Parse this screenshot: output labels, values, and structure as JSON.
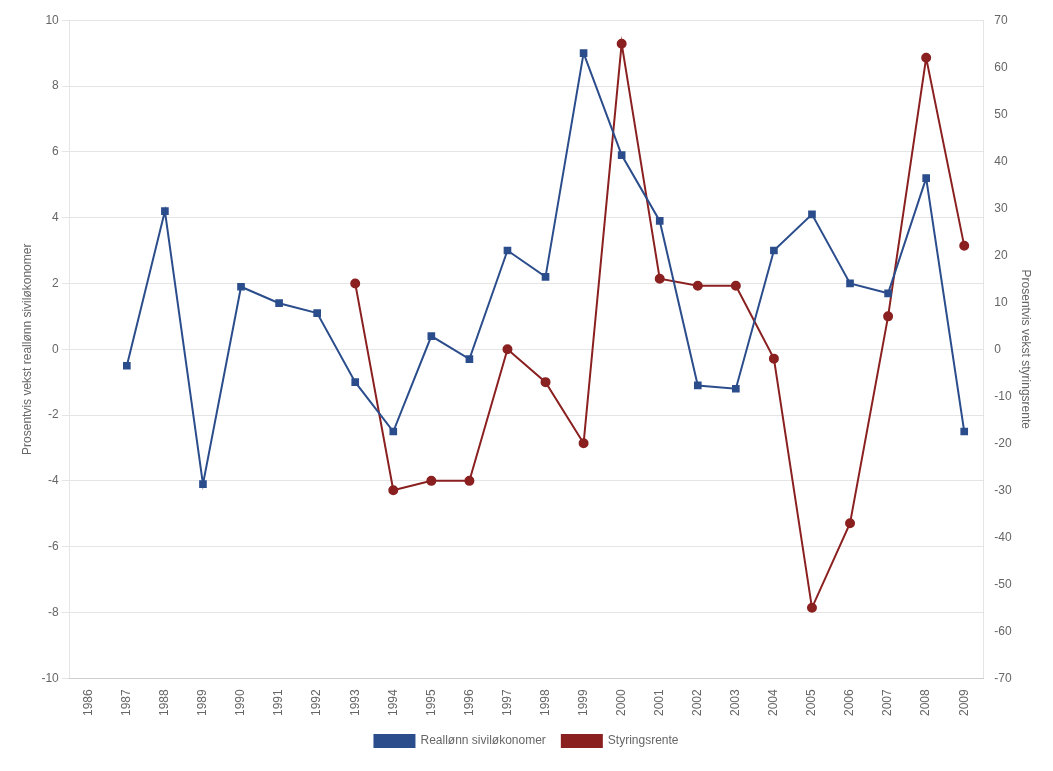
{
  "chart_data": {
    "type": "line",
    "x": [
      1986,
      1987,
      1988,
      1989,
      1990,
      1991,
      1992,
      1993,
      1994,
      1995,
      1996,
      1997,
      1998,
      1999,
      2000,
      2001,
      2002,
      2003,
      2004,
      2005,
      2006,
      2007,
      2008,
      2009
    ],
    "xlim": [
      1985.5,
      2009.5
    ],
    "xticks": [
      1986,
      1987,
      1988,
      1989,
      1990,
      1991,
      1992,
      1993,
      1994,
      1995,
      1996,
      1997,
      1998,
      1999,
      2000,
      2001,
      2002,
      2003,
      2004,
      2005,
      2006,
      2007,
      2008,
      2009
    ],
    "ylabel": "Prosentvis vekst reallønn siviløkonomer",
    "y2label": "Prosentvis vekst styringsrente",
    "ylim": [
      -10,
      10
    ],
    "yticks": [
      -10,
      -8,
      -6,
      -4,
      -2,
      0,
      2,
      4,
      6,
      8,
      10
    ],
    "y2lim": [
      -70,
      70
    ],
    "y2ticks": [
      -70,
      -60,
      -50,
      -40,
      -30,
      -20,
      -10,
      0,
      10,
      20,
      30,
      40,
      50,
      60,
      70
    ],
    "grid": "y",
    "legend": "bottom",
    "series": [
      {
        "name": "Reallønn siviløkonomer",
        "color": "#2B4D8C",
        "marker": "square",
        "line_style": "solid",
        "values": [
          null,
          -0.5,
          4.2,
          -4.1,
          1.9,
          1.4,
          1.1,
          -1.0,
          -2.5,
          0.4,
          -0.3,
          3.0,
          2.2,
          9.0,
          5.9,
          3.9,
          -1.1,
          -1.2,
          3.0,
          4.1,
          2.0,
          1.7,
          5.2,
          -2.5
        ]
      },
      {
        "name": "Styringsrente",
        "color": "#8B2020",
        "marker": "circle",
        "line_style": "solid",
        "axis": "y2",
        "values": [
          null,
          null,
          null,
          null,
          null,
          null,
          null,
          14.0,
          -30.0,
          -28.0,
          -28.0,
          0.0,
          -7.0,
          -20.0,
          65.0,
          15.0,
          13.5,
          13.5,
          -2.0,
          -55.0,
          -37.0,
          7.0,
          62.0,
          22.0
        ]
      }
    ]
  }
}
